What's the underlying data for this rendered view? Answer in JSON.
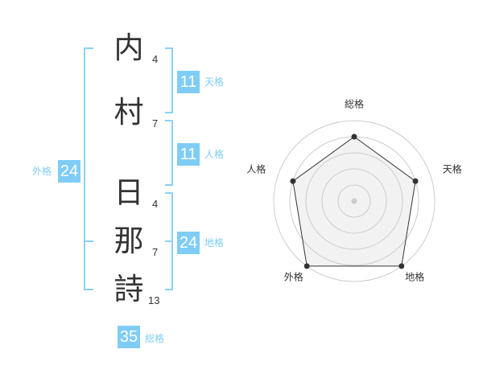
{
  "name_chars": [
    {
      "char": "内",
      "strokes": "4"
    },
    {
      "char": "村",
      "strokes": "7"
    },
    {
      "char": "日",
      "strokes": "4"
    },
    {
      "char": "那",
      "strokes": "7"
    },
    {
      "char": "詩",
      "strokes": "13"
    }
  ],
  "kaku": {
    "tenkaku": {
      "label": "天格",
      "value": "11"
    },
    "jinkaku": {
      "label": "人格",
      "value": "11"
    },
    "chikaku": {
      "label": "地格",
      "value": "24"
    },
    "gaikaku": {
      "label": "外格",
      "value": "24"
    },
    "soukaku": {
      "label": "総格",
      "value": "35"
    }
  },
  "chart_data": {
    "type": "radar",
    "axes": [
      "総格",
      "天格",
      "地格",
      "外格",
      "人格"
    ],
    "values": [
      4,
      4,
      5,
      5,
      4
    ],
    "range": [
      0,
      5
    ],
    "grid_rings": 5,
    "colors": {
      "fill": "#f2f2f2",
      "line": "#333333",
      "grid": "#cccccc",
      "accent": "#7fcdf6"
    }
  }
}
